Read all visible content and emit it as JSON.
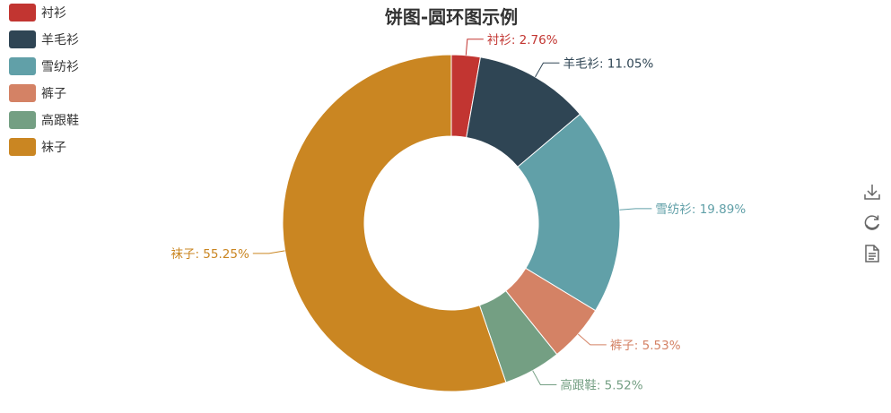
{
  "chart_data": {
    "type": "pie",
    "variant": "donut",
    "title": "饼图-圆环图示例",
    "legend_position": "top-left",
    "label_separator": ": ",
    "label_suffix": "%",
    "slices": [
      {
        "name": "衬衫",
        "value": 2.76,
        "color": "#c23531"
      },
      {
        "name": "羊毛衫",
        "value": 11.05,
        "color": "#2f4554"
      },
      {
        "name": "雪纺衫",
        "value": 19.89,
        "color": "#61a0a8"
      },
      {
        "name": "裤子",
        "value": 5.53,
        "color": "#d48265"
      },
      {
        "name": "高跟鞋",
        "value": 5.52,
        "color": "#749f83"
      },
      {
        "name": "袜子",
        "value": 55.25,
        "color": "#ca8622"
      }
    ]
  },
  "toolbox": {
    "items": [
      {
        "name": "save-as-image",
        "icon": "download-icon"
      },
      {
        "name": "restore",
        "icon": "refresh-icon"
      },
      {
        "name": "data-view",
        "icon": "document-icon"
      }
    ],
    "color": "#666666"
  }
}
